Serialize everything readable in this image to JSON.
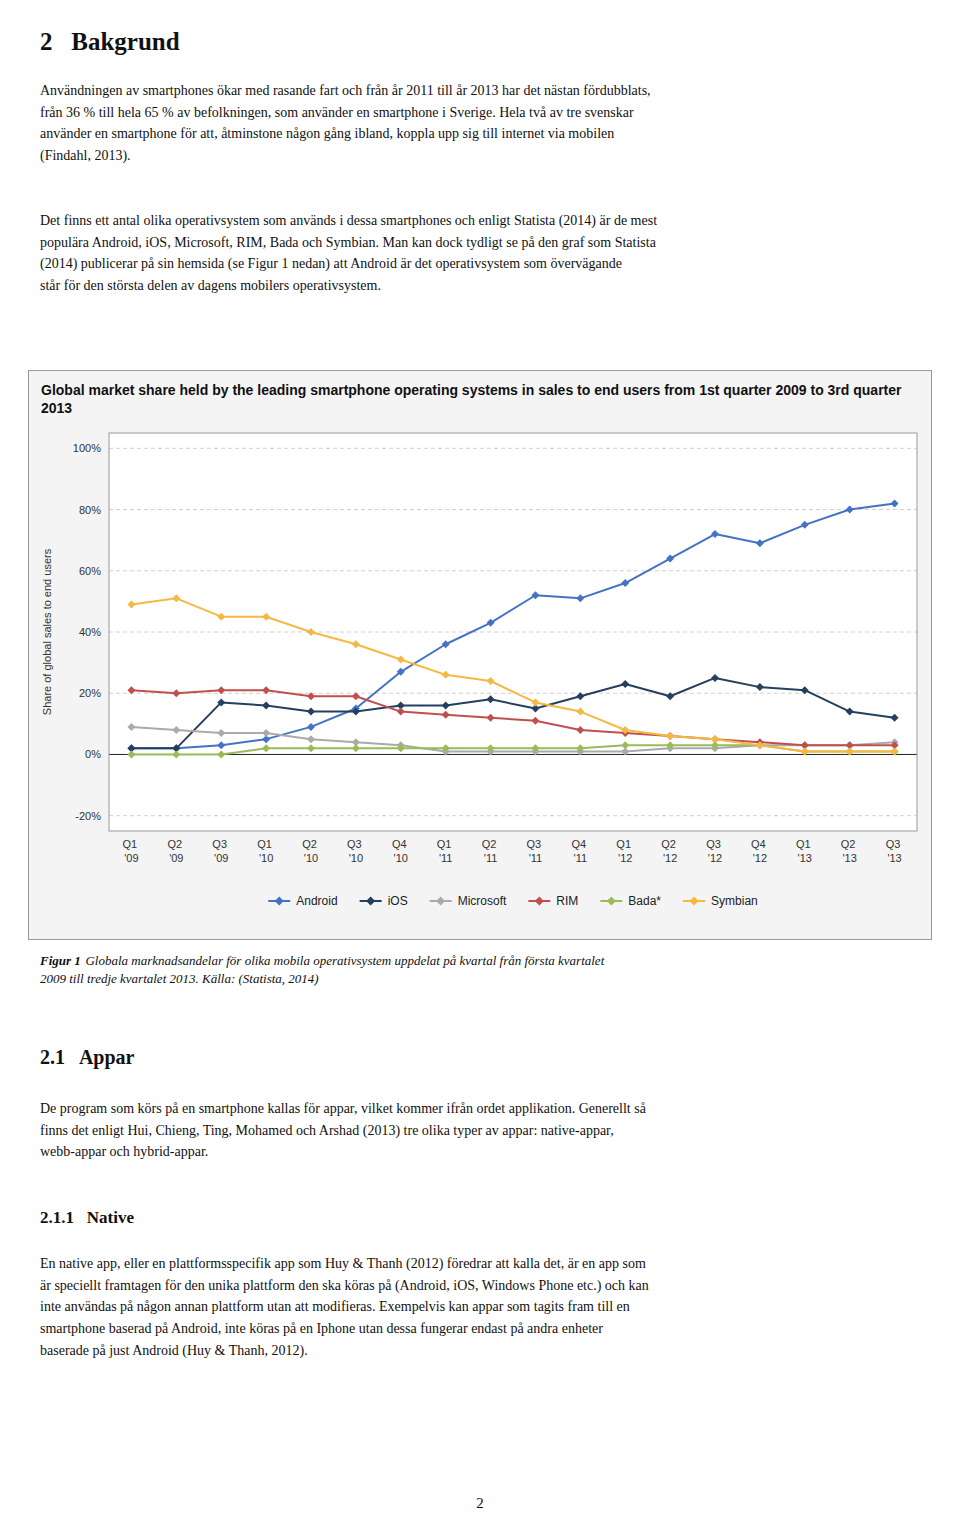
{
  "page": {
    "heading": "2   Bakgrund",
    "para1": "Användningen av smartphones ökar med rasande fart och från år 2011 till år 2013 har det nästan fördubblats,\nfrån 36 % till hela 65 % av befolkningen, som använder en smartphone i Sverige. Hela två av tre svenskar\nanvänder en smartphone för att, åtminstone någon gång ibland, koppla upp sig till internet via mobilen\n(Findahl, 2013).",
    "para2": "Det finns ett antal olika operativsystem som används i dessa smartphones och enligt Statista (2014) är de mest\npopulära Android, iOS, Microsoft, RIM, Bada och Symbian. Man kan dock tydligt se på den graf som Statista\n(2014) publicerar på sin hemsida (se Figur 1 nedan) att Android är det operativsystem som övervägande\nstår för den största delen av dagens mobilers operativsystem.",
    "caption_label": "Figur 1",
    "caption": "Globala marknadsandelar för olika mobila operativsystem uppdelat på kvartal från första kvartalet\n2009 till tredje kvartalet 2013. Källa: (Statista, 2014)",
    "section_heading": "2.1   Appar",
    "para3": "De program som körs på en smartphone kallas för appar, vilket kommer ifrån ordet applikation. Generellt så\nfinns det enligt Hui, Chieng, Ting, Mohamed och Arshad (2013) tre olika typer av appar: native-appar,\nwebb-appar och hybrid-appar.",
    "subsection": "2.1.1   Native",
    "para4": "En native app, eller en plattformsspecifik app som Huy & Thanh (2012) föredrar att kalla det, är en app som\när speciellt framtagen för den unika plattform den ska köras på (Android, iOS, Windows Phone etc.) och kan\ninte användas på någon annan plattform utan att modifieras. Exempelvis kan appar som tagits fram till en\nsmartphone baserad på Android, inte köras på en Iphone utan dessa fungerar endast på andra enheter\nbaserade på just Android (Huy & Thanh, 2012).",
    "page_number": "2"
  },
  "chart_data": {
    "type": "line",
    "title": "Global market share held by the leading smartphone operating systems in sales to end users from 1st quarter 2009 to 3rd quarter 2013",
    "y_label": "Share of global sales to end users",
    "categories": [
      "Q1 '09",
      "Q2 '09",
      "Q3 '09",
      "Q1 '10",
      "Q2 '10",
      "Q3 '10",
      "Q4 '10",
      "Q1 '11",
      "Q2 '11",
      "Q3 '11",
      "Q4 '11",
      "Q1 '12",
      "Q2 '12",
      "Q3 '12",
      "Q4 '12",
      "Q1 '13",
      "Q2 '13",
      "Q3 '13"
    ],
    "series": [
      {
        "name": "Android",
        "color": "#4472C4",
        "values": [
          2,
          2,
          3,
          5,
          9,
          15,
          27,
          36,
          43,
          52,
          51,
          56,
          64,
          72,
          69,
          75,
          80,
          82
        ]
      },
      {
        "name": "iOS",
        "color": "#243F60",
        "values": [
          2,
          2,
          17,
          16,
          14,
          14,
          16,
          16,
          18,
          15,
          19,
          23,
          19,
          25,
          22,
          21,
          14,
          12
        ]
      },
      {
        "name": "Microsoft",
        "color": "#AAAAAA",
        "values": [
          9,
          8,
          7,
          7,
          5,
          4,
          3,
          1,
          1,
          1,
          1,
          1,
          2,
          2,
          3,
          3,
          3,
          4
        ]
      },
      {
        "name": "RIM",
        "color": "#C0504D",
        "values": [
          21,
          20,
          21,
          21,
          19,
          19,
          14,
          13,
          12,
          11,
          8,
          7,
          6,
          5,
          4,
          3,
          3,
          3
        ]
      },
      {
        "name": "Bada*",
        "color": "#9BBB59",
        "values": [
          0,
          0,
          0,
          2,
          2,
          2,
          2,
          2,
          2,
          2,
          2,
          3,
          3,
          3,
          3,
          1,
          1,
          1
        ]
      },
      {
        "name": "Symbian",
        "color": "#F4B942",
        "values": [
          49,
          51,
          45,
          45,
          40,
          36,
          31,
          26,
          24,
          17,
          14,
          8,
          6,
          5,
          3,
          1,
          1,
          1
        ]
      }
    ],
    "marker": "diamond",
    "ylim": [
      -25,
      105
    ],
    "yticks": [
      {
        "value": -20,
        "label": "-20%"
      },
      {
        "value": 0,
        "label": "0%"
      },
      {
        "value": 20,
        "label": "20%"
      },
      {
        "value": 40,
        "label": "40%"
      },
      {
        "value": 60,
        "label": "60%"
      },
      {
        "value": 80,
        "label": "80%"
      },
      {
        "value": 100,
        "label": "100%"
      }
    ],
    "grid": true,
    "legend": "bottom"
  }
}
